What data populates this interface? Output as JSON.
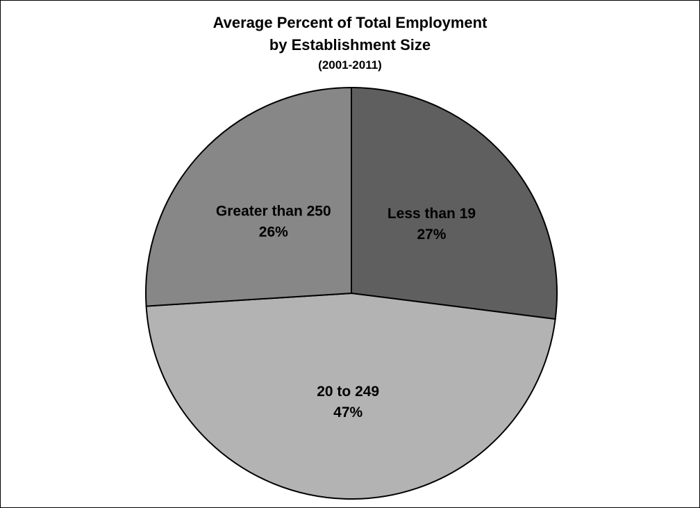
{
  "chart_data": {
    "type": "pie",
    "title": "Average Percent of Total Employment",
    "title_line2": "by Establishment Size",
    "subtitle": "(2001-2011)",
    "slices": [
      {
        "label": "Less than 19",
        "value": 27,
        "value_label": "27%",
        "color": "#5f5f5f"
      },
      {
        "label": "20 to 249",
        "value": 47,
        "value_label": "47%",
        "color": "#b3b3b3"
      },
      {
        "label": "Greater than 250",
        "value": 26,
        "value_label": "26%",
        "color": "#878787"
      }
    ],
    "start_angle_deg": 0,
    "direction": "clockwise",
    "legend": "none",
    "outline_color": "#000000"
  }
}
